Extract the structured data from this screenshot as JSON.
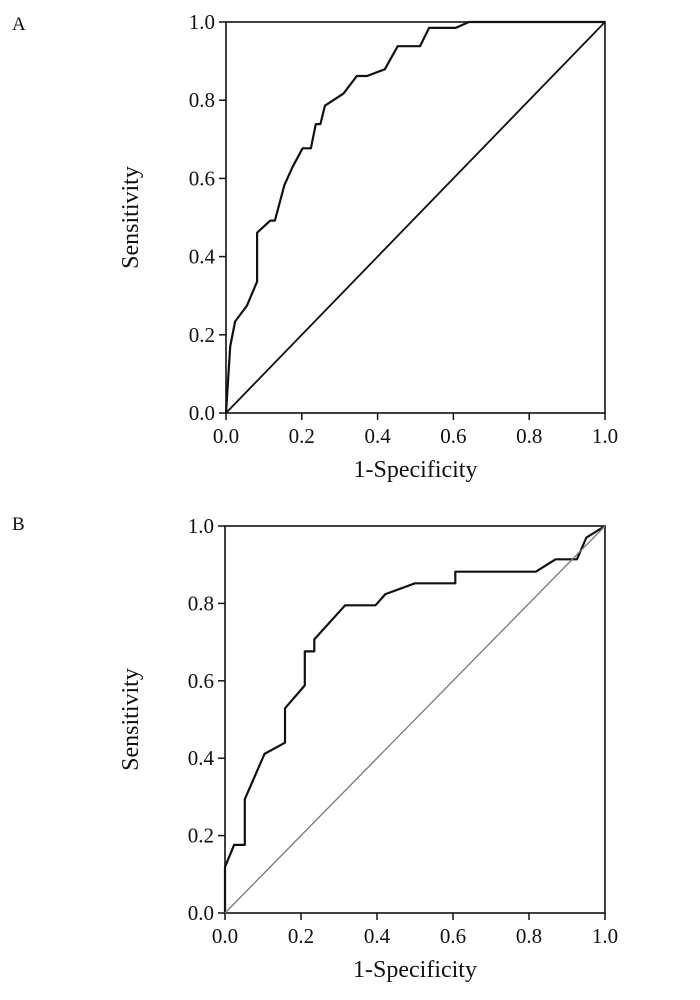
{
  "chart_data": [
    {
      "type": "line",
      "panel_label": "A",
      "xlabel": "1-Specificity",
      "ylabel": "Sensitivity",
      "xlim": [
        0,
        1
      ],
      "ylim": [
        0,
        1
      ],
      "xticks": [
        "0.0",
        "0.2",
        "0.4",
        "0.6",
        "0.8",
        "1.0"
      ],
      "yticks": [
        "0.0",
        "0.2",
        "0.4",
        "0.6",
        "0.8",
        "1.0"
      ],
      "grid": false,
      "reference_color": "#111111",
      "series": [
        {
          "name": "ROC curve",
          "color": "#111111",
          "x": [
            0,
            0.011,
            0.024,
            0.055,
            0.082,
            0.082,
            0.117,
            0.129,
            0.154,
            0.176,
            0.202,
            0.224,
            0.237,
            0.249,
            0.261,
            0.31,
            0.345,
            0.372,
            0.419,
            0.453,
            0.512,
            0.536,
            0.606,
            0.641,
            1.0
          ],
          "y": [
            0,
            0.17,
            0.234,
            0.274,
            0.336,
            0.461,
            0.492,
            0.492,
            0.583,
            0.63,
            0.677,
            0.677,
            0.739,
            0.739,
            0.786,
            0.817,
            0.862,
            0.862,
            0.879,
            0.938,
            0.938,
            0.985,
            0.985,
            1.0,
            1.0
          ]
        },
        {
          "name": "Reference line",
          "x": [
            0,
            1
          ],
          "y": [
            0,
            1
          ]
        }
      ]
    },
    {
      "type": "line",
      "panel_label": "B",
      "xlabel": "1-Specificity",
      "ylabel": "Sensitivity",
      "xlim": [
        0,
        1
      ],
      "ylim": [
        0,
        1
      ],
      "xticks": [
        "0.0",
        "0.2",
        "0.4",
        "0.6",
        "0.8",
        "1.0"
      ],
      "yticks": [
        "0.0",
        "0.2",
        "0.4",
        "0.6",
        "0.8",
        "1.0"
      ],
      "grid": false,
      "reference_color": "#777777",
      "series": [
        {
          "name": "ROC curve",
          "color": "#111111",
          "x": [
            0,
            0,
            0.024,
            0.052,
            0.052,
            0.104,
            0.158,
            0.158,
            0.21,
            0.21,
            0.235,
            0.235,
            0.316,
            0.396,
            0.422,
            0.5,
            0.606,
            0.606,
            0.818,
            0.87,
            0.926,
            0.951,
            1.0
          ],
          "y": [
            0,
            0.119,
            0.176,
            0.176,
            0.294,
            0.411,
            0.44,
            0.529,
            0.588,
            0.676,
            0.676,
            0.707,
            0.795,
            0.795,
            0.824,
            0.852,
            0.852,
            0.882,
            0.882,
            0.914,
            0.914,
            0.97,
            1.0
          ]
        },
        {
          "name": "Reference line",
          "x": [
            0,
            1
          ],
          "y": [
            0,
            1
          ]
        }
      ]
    }
  ]
}
